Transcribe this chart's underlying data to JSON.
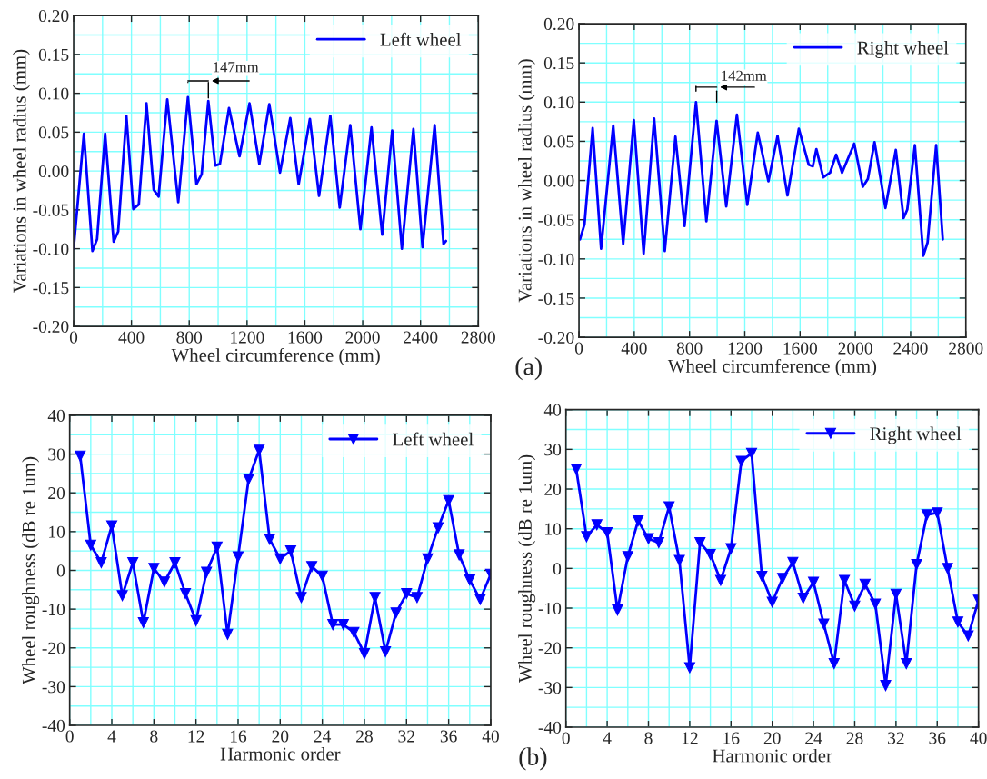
{
  "chart_data": [
    {
      "type": "line",
      "xlabel": "Wheel circumference (mm)",
      "ylabel": "Variations in wheel radius (mm)",
      "xlim": [
        0,
        2800
      ],
      "xticks": [
        0,
        400,
        800,
        1200,
        1600,
        2000,
        2400,
        2800
      ],
      "ylim": [
        -0.2,
        0.2
      ],
      "yticks": [
        {
          "value": -0.2,
          "label": "-0.20"
        },
        {
          "value": -0.15,
          "label": "-0.15"
        },
        {
          "value": -0.1,
          "label": "-0.10"
        },
        {
          "value": -0.05,
          "label": "-0.05"
        },
        {
          "value": 0,
          "label": "0.00"
        },
        {
          "value": 0.05,
          "label": "0.05"
        },
        {
          "value": 0.1,
          "label": "0.10"
        },
        {
          "value": 0.15,
          "label": "0.15"
        },
        {
          "value": 0.2,
          "label": "0.20"
        }
      ],
      "grid": true,
      "legend": "top right",
      "marker": "none",
      "line_style": "solid",
      "series": [
        {
          "name": "Left wheel",
          "color": "#0000ff",
          "x": [
            0,
            71,
            130,
            162,
            218,
            277,
            308,
            365,
            413,
            451,
            504,
            554,
            588,
            648,
            724,
            791,
            850,
            886,
            932,
            980,
            1012,
            1075,
            1148,
            1217,
            1285,
            1354,
            1428,
            1499,
            1557,
            1635,
            1698,
            1776,
            1841,
            1914,
            1984,
            2061,
            2135,
            2204,
            2271,
            2351,
            2414,
            2498,
            2559,
            2576
          ],
          "values": [
            -0.1,
            0.048,
            -0.103,
            -0.088,
            0.048,
            -0.091,
            -0.078,
            0.071,
            -0.049,
            -0.043,
            0.087,
            -0.024,
            -0.033,
            0.092,
            -0.04,
            0.095,
            -0.017,
            -0.004,
            0.09,
            0.007,
            0.009,
            0.081,
            0.019,
            0.087,
            0.009,
            0.086,
            -0.002,
            0.068,
            -0.017,
            0.067,
            -0.032,
            0.071,
            -0.047,
            0.059,
            -0.075,
            0.056,
            -0.082,
            0.052,
            -0.1,
            0.054,
            -0.098,
            0.059,
            -0.094,
            -0.09
          ]
        }
      ],
      "annotations": [
        "147mm"
      ]
    },
    {
      "type": "line",
      "xlabel": "Wheel circumference (mm)",
      "ylabel": "Variations in wheel radius (mm)",
      "xlim": [
        0,
        2800
      ],
      "xticks": [
        0,
        400,
        800,
        1200,
        1600,
        2000,
        2400,
        2800
      ],
      "ylim": [
        -0.2,
        0.2
      ],
      "yticks": [
        {
          "value": -0.2,
          "label": "-0.20"
        },
        {
          "value": -0.15,
          "label": "-0.15"
        },
        {
          "value": -0.1,
          "label": "-0.10"
        },
        {
          "value": -0.05,
          "label": "-0.05"
        },
        {
          "value": 0,
          "label": "0.00"
        },
        {
          "value": 0.05,
          "label": "0.05"
        },
        {
          "value": 0.1,
          "label": "0.10"
        },
        {
          "value": 0.15,
          "label": "0.15"
        },
        {
          "value": 0.2,
          "label": "0.20"
        }
      ],
      "grid": true,
      "legend": "top right",
      "marker": "none",
      "line_style": "solid",
      "series": [
        {
          "name": "Right wheel",
          "color": "#0000ff",
          "x": [
            7,
            40,
            99,
            160,
            248,
            320,
            397,
            468,
            544,
            621,
            698,
            764,
            847,
            922,
            996,
            1066,
            1143,
            1218,
            1294,
            1371,
            1437,
            1509,
            1591,
            1663,
            1692,
            1718,
            1768,
            1817,
            1861,
            1904,
            1992,
            2054,
            2091,
            2139,
            2218,
            2293,
            2349,
            2376,
            2431,
            2492,
            2523,
            2585,
            2633
          ],
          "values": [
            -0.075,
            -0.056,
            0.067,
            -0.087,
            0.07,
            -0.081,
            0.077,
            -0.093,
            0.079,
            -0.09,
            0.056,
            -0.058,
            0.1,
            -0.052,
            0.076,
            -0.033,
            0.084,
            -0.031,
            0.061,
            -0.001,
            0.057,
            -0.019,
            0.066,
            0.02,
            0.018,
            0.04,
            0.004,
            0.01,
            0.033,
            0.01,
            0.047,
            -0.008,
            0.002,
            0.049,
            -0.035,
            0.039,
            -0.048,
            -0.037,
            0.045,
            -0.096,
            -0.079,
            0.045,
            -0.075
          ]
        }
      ],
      "annotations": [
        "142mm",
        "(a)"
      ]
    },
    {
      "type": "line",
      "xlabel": "Harmonic order",
      "ylabel": "Wheel roughness (dB re 1um)",
      "xlim": [
        0,
        40
      ],
      "xticks": [
        0,
        4,
        8,
        12,
        16,
        20,
        24,
        28,
        32,
        36,
        40
      ],
      "ylim": [
        -40,
        40
      ],
      "yticks": [
        -40,
        -30,
        -20,
        -10,
        0,
        10,
        20,
        30,
        40
      ],
      "grid": true,
      "legend": "top right",
      "marker": "triangle",
      "line_style": "solid",
      "x": [
        1,
        2,
        3,
        4,
        5,
        6,
        7,
        8,
        9,
        10,
        11,
        12,
        13,
        14,
        15,
        16,
        17,
        18,
        19,
        20,
        21,
        22,
        23,
        24,
        25,
        26,
        27,
        28,
        29,
        30,
        31,
        32,
        33,
        34,
        35,
        36,
        37,
        38,
        39,
        40
      ],
      "series": [
        {
          "name": "Left wheel",
          "color": "#0000ff",
          "values": [
            29.5,
            6.5,
            2,
            11.5,
            -6.5,
            2,
            -13.5,
            0.5,
            -3,
            2,
            -6,
            -13,
            -0.5,
            6,
            -16.5,
            3.5,
            23.5,
            31,
            8,
            3,
            5,
            -7,
            1,
            -1.5,
            -14,
            -14,
            -16,
            -21.5,
            -7,
            -21,
            -11,
            -6,
            -7,
            3,
            11,
            18,
            4,
            -2.5,
            -7.5,
            -1
          ]
        }
      ]
    },
    {
      "type": "line",
      "xlabel": "Harmonic order",
      "ylabel": "Wheel roughness (dB re 1um)",
      "xlim": [
        0,
        40
      ],
      "xticks": [
        0,
        4,
        8,
        12,
        16,
        20,
        24,
        28,
        32,
        36,
        40
      ],
      "ylim": [
        -40,
        40
      ],
      "yticks": [
        -40,
        -30,
        -20,
        -10,
        0,
        10,
        20,
        30,
        40
      ],
      "grid": true,
      "legend": "top right",
      "marker": "triangle",
      "line_style": "solid",
      "x": [
        1,
        2,
        3,
        4,
        5,
        6,
        7,
        8,
        9,
        10,
        11,
        12,
        13,
        14,
        15,
        16,
        17,
        18,
        19,
        20,
        21,
        22,
        23,
        24,
        25,
        26,
        27,
        28,
        29,
        30,
        31,
        32,
        33,
        34,
        35,
        36,
        37,
        38,
        39,
        40
      ],
      "series": [
        {
          "name": "Right wheel",
          "color": "#0000ff",
          "values": [
            25,
            8,
            11,
            9,
            -10.5,
            3,
            12,
            7.5,
            6.5,
            15.5,
            2,
            -25,
            6.5,
            3.5,
            -3,
            5,
            27,
            29,
            -2,
            -8.5,
            -2.5,
            1.5,
            -7.5,
            -3.5,
            -14,
            -24,
            -3,
            -9.5,
            -4,
            -9,
            -29.5,
            -6.5,
            -24,
            1,
            13.5,
            14,
            0,
            -13.5,
            -17,
            -8
          ]
        }
      ],
      "annotations": [
        "(b)"
      ]
    }
  ]
}
